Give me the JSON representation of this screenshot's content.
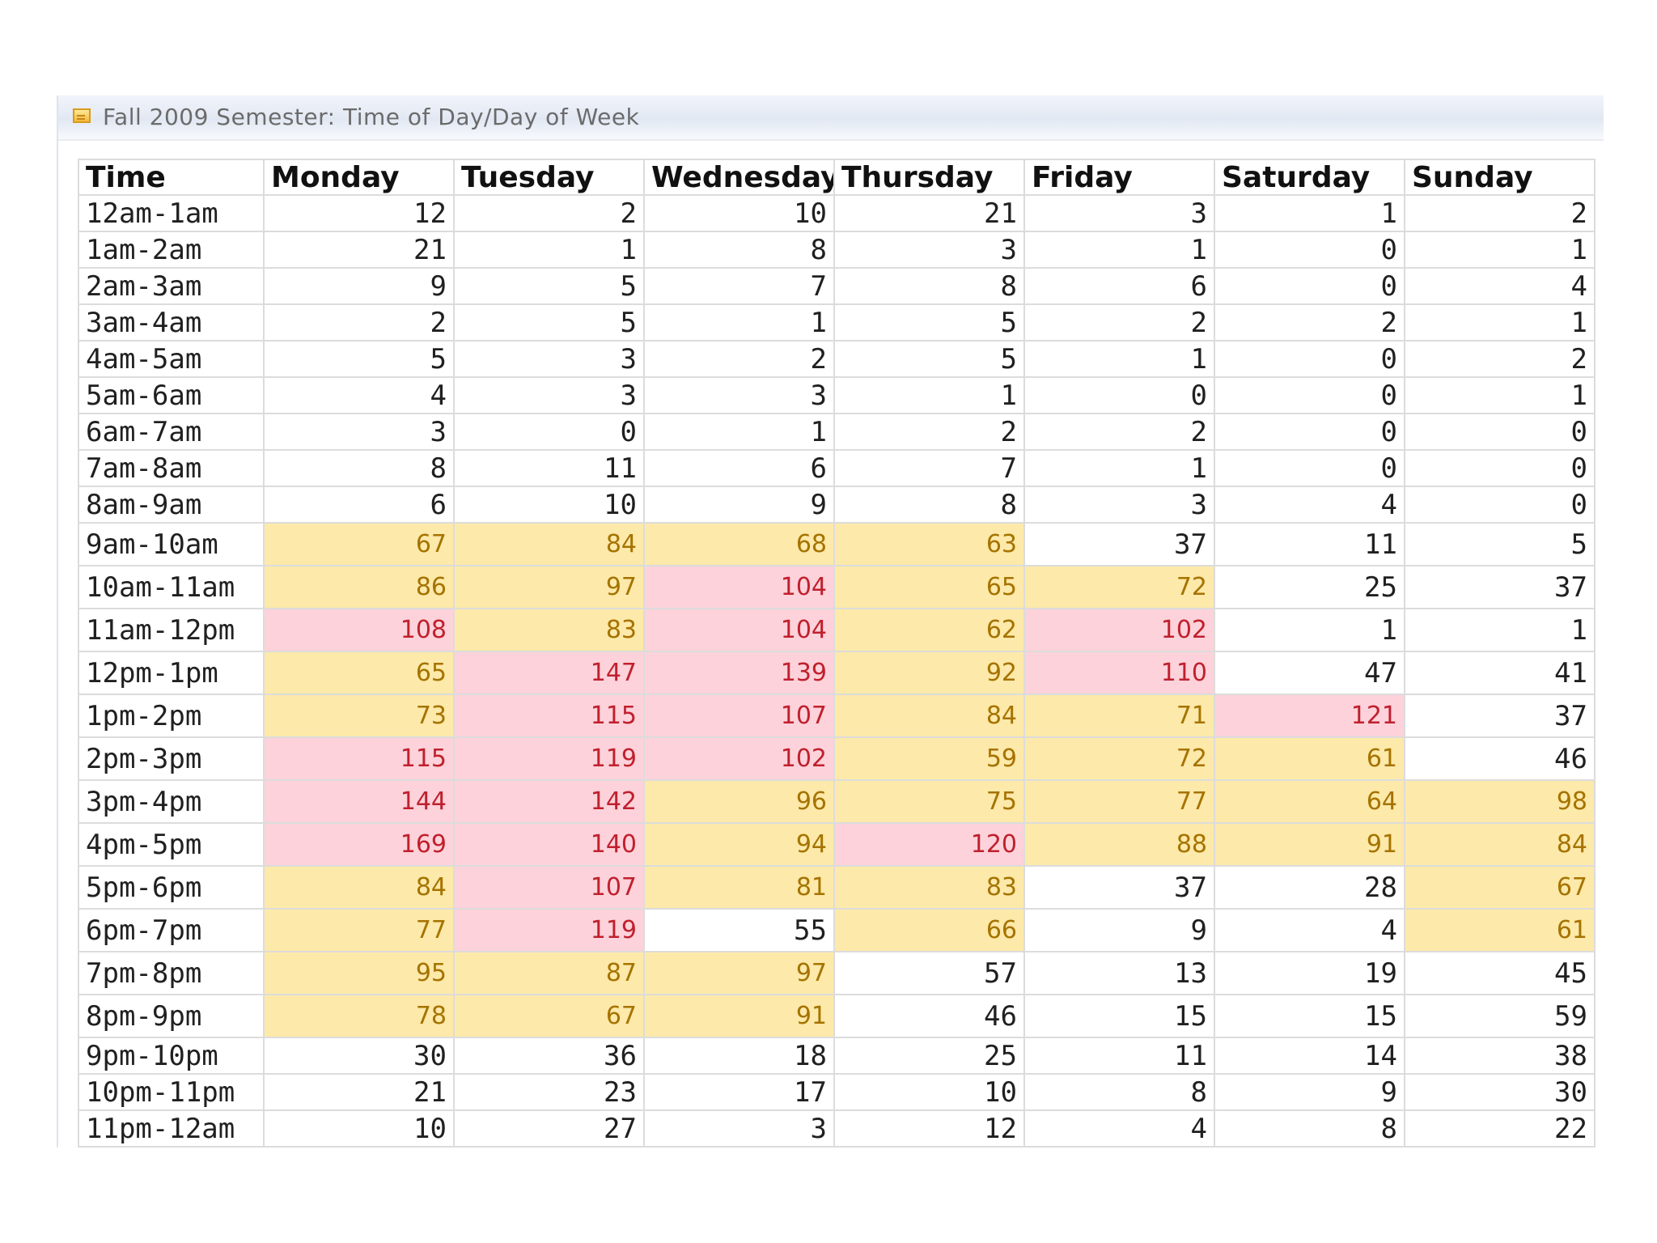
{
  "panel": {
    "title": "Fall 2009 Semester: Time of Day/Day of Week",
    "icon": "report-icon"
  },
  "colors": {
    "medium_highlight_bg": "#fde9a9",
    "medium_highlight_text": "#a57300",
    "high_highlight_bg": "#fdd2da",
    "high_highlight_text": "#c0202e"
  },
  "table": {
    "headers": [
      "Time",
      "Monday",
      "Tuesday",
      "Wednesday",
      "Thursday",
      "Friday",
      "Saturday",
      "Sunday"
    ],
    "rows": [
      {
        "time": "12am-1am",
        "values": [
          "12",
          "2",
          "10",
          "21",
          "3",
          "1",
          "2"
        ],
        "levels": [
          "",
          "",
          "",
          "",
          "",
          "",
          ""
        ]
      },
      {
        "time": "1am-2am",
        "values": [
          "21",
          "1",
          "8",
          "3",
          "1",
          "0",
          "1"
        ],
        "levels": [
          "",
          "",
          "",
          "",
          "",
          "",
          ""
        ]
      },
      {
        "time": "2am-3am",
        "values": [
          "9",
          "5",
          "7",
          "8",
          "6",
          "0",
          "4"
        ],
        "levels": [
          "",
          "",
          "",
          "",
          "",
          "",
          ""
        ]
      },
      {
        "time": "3am-4am",
        "values": [
          "2",
          "5",
          "1",
          "5",
          "2",
          "2",
          "1"
        ],
        "levels": [
          "",
          "",
          "",
          "",
          "",
          "",
          ""
        ]
      },
      {
        "time": "4am-5am",
        "values": [
          "5",
          "3",
          "2",
          "5",
          "1",
          "0",
          "2"
        ],
        "levels": [
          "",
          "",
          "",
          "",
          "",
          "",
          ""
        ]
      },
      {
        "time": "5am-6am",
        "values": [
          "4",
          "3",
          "3",
          "1",
          "0",
          "0",
          "1"
        ],
        "levels": [
          "",
          "",
          "",
          "",
          "",
          "",
          ""
        ]
      },
      {
        "time": "6am-7am",
        "values": [
          "3",
          "0",
          "1",
          "2",
          "2",
          "0",
          "0"
        ],
        "levels": [
          "",
          "",
          "",
          "",
          "",
          "",
          ""
        ]
      },
      {
        "time": "7am-8am",
        "values": [
          "8",
          "11",
          "6",
          "7",
          "1",
          "0",
          "0"
        ],
        "levels": [
          "",
          "",
          "",
          "",
          "",
          "",
          ""
        ]
      },
      {
        "time": "8am-9am",
        "values": [
          "6",
          "10",
          "9",
          "8",
          "3",
          "4",
          "0"
        ],
        "levels": [
          "",
          "",
          "",
          "",
          "",
          "",
          ""
        ]
      },
      {
        "time": "9am-10am",
        "values": [
          "67",
          "84",
          "68",
          "63",
          "37",
          "11",
          "5"
        ],
        "levels": [
          "yellow",
          "yellow",
          "yellow",
          "yellow",
          "",
          "",
          ""
        ]
      },
      {
        "time": "10am-11am",
        "values": [
          "86",
          "97",
          "104",
          "65",
          "72",
          "25",
          "37"
        ],
        "levels": [
          "yellow",
          "yellow",
          "pink",
          "yellow",
          "yellow",
          "",
          ""
        ]
      },
      {
        "time": "11am-12pm",
        "values": [
          "108",
          "83",
          "104",
          "62",
          "102",
          "1",
          "1"
        ],
        "levels": [
          "pink",
          "yellow",
          "pink",
          "yellow",
          "pink",
          "",
          ""
        ]
      },
      {
        "time": "12pm-1pm",
        "values": [
          "65",
          "147",
          "139",
          "92",
          "110",
          "47",
          "41"
        ],
        "levels": [
          "yellow",
          "pink",
          "pink",
          "yellow",
          "pink",
          "",
          ""
        ]
      },
      {
        "time": "1pm-2pm",
        "values": [
          "73",
          "115",
          "107",
          "84",
          "71",
          "121",
          "37"
        ],
        "levels": [
          "yellow",
          "pink",
          "pink",
          "yellow",
          "yellow",
          "pink",
          ""
        ]
      },
      {
        "time": "2pm-3pm",
        "values": [
          "115",
          "119",
          "102",
          "59",
          "72",
          "61",
          "46"
        ],
        "levels": [
          "pink",
          "pink",
          "pink",
          "yellow",
          "yellow",
          "yellow",
          ""
        ]
      },
      {
        "time": "3pm-4pm",
        "values": [
          "144",
          "142",
          "96",
          "75",
          "77",
          "64",
          "98"
        ],
        "levels": [
          "pink",
          "pink",
          "yellow",
          "yellow",
          "yellow",
          "yellow",
          "yellow"
        ]
      },
      {
        "time": "4pm-5pm",
        "values": [
          "169",
          "140",
          "94",
          "120",
          "88",
          "91",
          "84"
        ],
        "levels": [
          "pink",
          "pink",
          "yellow",
          "pink",
          "yellow",
          "yellow",
          "yellow"
        ]
      },
      {
        "time": "5pm-6pm",
        "values": [
          "84",
          "107",
          "81",
          "83",
          "37",
          "28",
          "67"
        ],
        "levels": [
          "yellow",
          "pink",
          "yellow",
          "yellow",
          "",
          "",
          "yellow"
        ]
      },
      {
        "time": "6pm-7pm",
        "values": [
          "77",
          "119",
          "55",
          "66",
          "9",
          "4",
          "61"
        ],
        "levels": [
          "yellow",
          "pink",
          "",
          "yellow",
          "",
          "",
          "yellow"
        ]
      },
      {
        "time": "7pm-8pm",
        "values": [
          "95",
          "87",
          "97",
          "57",
          "13",
          "19",
          "45"
        ],
        "levels": [
          "yellow",
          "yellow",
          "yellow",
          "",
          "",
          "",
          ""
        ]
      },
      {
        "time": "8pm-9pm",
        "values": [
          "78",
          "67",
          "91",
          "46",
          "15",
          "15",
          "59"
        ],
        "levels": [
          "yellow",
          "yellow",
          "yellow",
          "",
          "",
          "",
          ""
        ]
      },
      {
        "time": "9pm-10pm",
        "values": [
          "30",
          "36",
          "18",
          "25",
          "11",
          "14",
          "38"
        ],
        "levels": [
          "",
          "",
          "",
          "",
          "",
          "",
          ""
        ]
      },
      {
        "time": "10pm-11pm",
        "values": [
          "21",
          "23",
          "17",
          "10",
          "8",
          "9",
          "30"
        ],
        "levels": [
          "",
          "",
          "",
          "",
          "",
          "",
          ""
        ]
      },
      {
        "time": "11pm-12am",
        "values": [
          "10",
          "27",
          "3",
          "12",
          "4",
          "8",
          "22"
        ],
        "levels": [
          "",
          "",
          "",
          "",
          "",
          "",
          ""
        ]
      }
    ]
  }
}
